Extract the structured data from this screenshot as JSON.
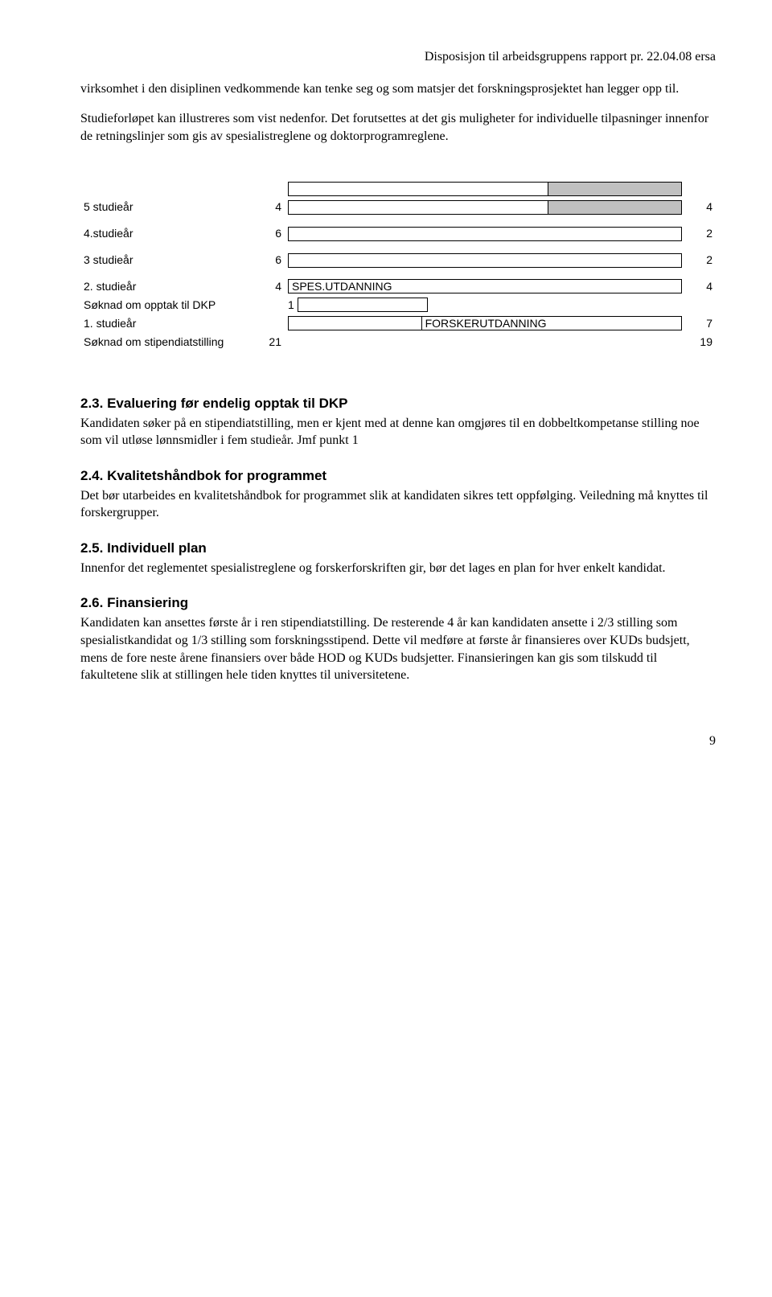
{
  "header": {
    "right_text": "Disposisjon til arbeidsgruppens rapport pr. 22.04.08 ersa"
  },
  "intro": {
    "p1": "virksomhet i den disiplinen vedkommende kan tenke seg og som matsjer det forskningsprosjektet han legger opp til.",
    "p2": "Studieforløpet kan illustreres som vist nedenfor. Det forutsettes at det gis muligheter for individuelle tilpasninger innenfor de retningslinjer som gis av spesialistreglene og doktorprogramreglene."
  },
  "table": {
    "rows": [
      {
        "label": "5 studieår",
        "left_num": "4",
        "right_num": "4"
      },
      {
        "label": "4.studieår",
        "left_num": "6",
        "right_num": "2"
      },
      {
        "label": "3 studieår",
        "left_num": "6",
        "right_num": "2"
      },
      {
        "label": "2. studieår",
        "left_num": "4",
        "mid_text": "SPES.UTDANNING",
        "right_num": "4"
      },
      {
        "label_a": "Søknad om opptak til DKP",
        "num_a": "1",
        "label_b": "1. studieår",
        "mid_text": "FORSKERUTDANNING",
        "right_num": "7"
      },
      {
        "label": "Søknad om stipendiatstilling",
        "left_num": "21",
        "right_num": "19"
      }
    ]
  },
  "sections": {
    "s23": {
      "title": "2.3. Evaluering før endelig opptak til DKP",
      "body": "Kandidaten søker på en stipendiatstilling, men er kjent med at denne kan omgjøres til en dobbeltkompetanse stilling noe som vil utløse lønnsmidler i fem studieår. Jmf punkt 1"
    },
    "s24": {
      "title": "2.4. Kvalitetshåndbok for programmet",
      "body": "Det bør utarbeides en kvalitetshåndbok for programmet slik at kandidaten sikres tett oppfølging. Veiledning må knyttes til forskergrupper."
    },
    "s25": {
      "title": "2.5. Individuell plan",
      "body": "Innenfor det reglementet spesialistreglene og forskerforskriften gir, bør det lages en plan for hver enkelt kandidat."
    },
    "s26": {
      "title": "2.6. Finansiering",
      "body": "Kandidaten kan ansettes første år i ren stipendiatstilling. De resterende 4 år kan kandidaten ansette i 2/3 stilling som spesialistkandidat og 1/3 stilling som forskningsstipend. Dette vil medføre at første år finansieres over KUDs budsjett, mens de fore neste årene finansiers over både HOD og KUDs budsjetter. Finansieringen kan gis som tilskudd til fakultetene slik at stillingen hele tiden knyttes til universitetene."
    }
  },
  "page_number": "9"
}
